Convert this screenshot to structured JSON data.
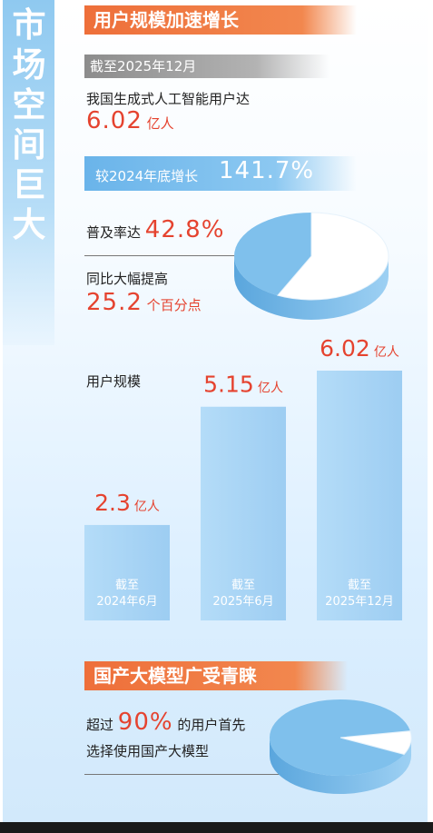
{
  "sidebar": {
    "title": "市场空间巨大"
  },
  "section1": {
    "banner": "用户规模加速增长",
    "date_label": "截至2025年12月",
    "users_intro": "我国生成式人工智能用户达",
    "users_value": "6.02",
    "users_unit": "亿人",
    "growth_label": "较2024年底增长",
    "growth_value": "141.7%",
    "penetration_label": "普及率达",
    "penetration_value": "42.8%",
    "yoy_label": "同比大幅提高",
    "yoy_value": "25.2",
    "yoy_unit": "个百分点"
  },
  "section2": {
    "banner": "国产大模型广受青睐",
    "line1_prefix": "超过",
    "line1_value": "90%",
    "line1_suffix": "的用户首先",
    "line2": "选择使用国产大模型"
  },
  "colors": {
    "accent_orange": "#ee6f3a",
    "value_red": "#e5432f",
    "bar_blue": "#9dcdf2",
    "pie_blue": "#7fc0ec",
    "pie_white": "#ffffff"
  },
  "pies": [
    {
      "name": "penetration",
      "percent": 42.8
    },
    {
      "name": "domestic-model-preference",
      "percent": 90
    }
  ],
  "chart_data": {
    "type": "bar",
    "title": "用户规模",
    "categories": [
      "截至2024年6月",
      "截至2025年6月",
      "截至2025年12月"
    ],
    "category_lines": [
      [
        "截至",
        "2024年6月"
      ],
      [
        "截至",
        "2025年6月"
      ],
      [
        "截至",
        "2025年12月"
      ]
    ],
    "values": [
      2.3,
      5.15,
      6.02
    ],
    "value_labels": [
      "2.3",
      "5.15",
      "6.02"
    ],
    "unit": "亿人",
    "ylim": [
      0,
      6.02
    ]
  }
}
